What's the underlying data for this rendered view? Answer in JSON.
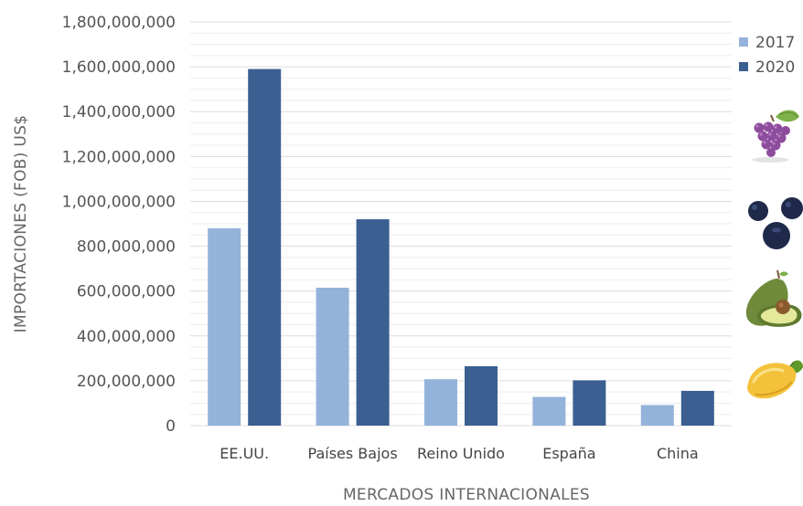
{
  "chart_data": {
    "type": "bar",
    "categories": [
      "EE.UU.",
      "Países Bajos",
      "Reino Unido",
      "España",
      "China"
    ],
    "series": [
      {
        "name": "2017",
        "color": "#94b3da",
        "values": [
          880000000,
          615000000,
          207000000,
          128000000,
          92000000
        ]
      },
      {
        "name": "2020",
        "color": "#3b5f91",
        "values": [
          1590000000,
          920000000,
          265000000,
          202000000,
          155000000
        ]
      }
    ],
    "yticks": [
      0,
      200000000,
      400000000,
      600000000,
      800000000,
      1000000000,
      1200000000,
      1400000000,
      1600000000,
      1800000000
    ],
    "ytick_labels": [
      "0",
      "200,000,000",
      "400,000,000",
      "600,000,000",
      "800,000,000",
      "1,000,000,000",
      "1,200,000,000",
      "1,400,000,000",
      "1,600,000,000",
      "1,800,000,000"
    ],
    "ylim": [
      0,
      1800000000
    ],
    "xlabel": "MERCADOS INTERNACIONALES",
    "ylabel": "IMPORTACIONES (FOB) US$",
    "grid": true,
    "legend_position": "top-right",
    "decorations": [
      "grapes-icon",
      "blueberries-icon",
      "avocado-icon",
      "mango-icon"
    ]
  }
}
